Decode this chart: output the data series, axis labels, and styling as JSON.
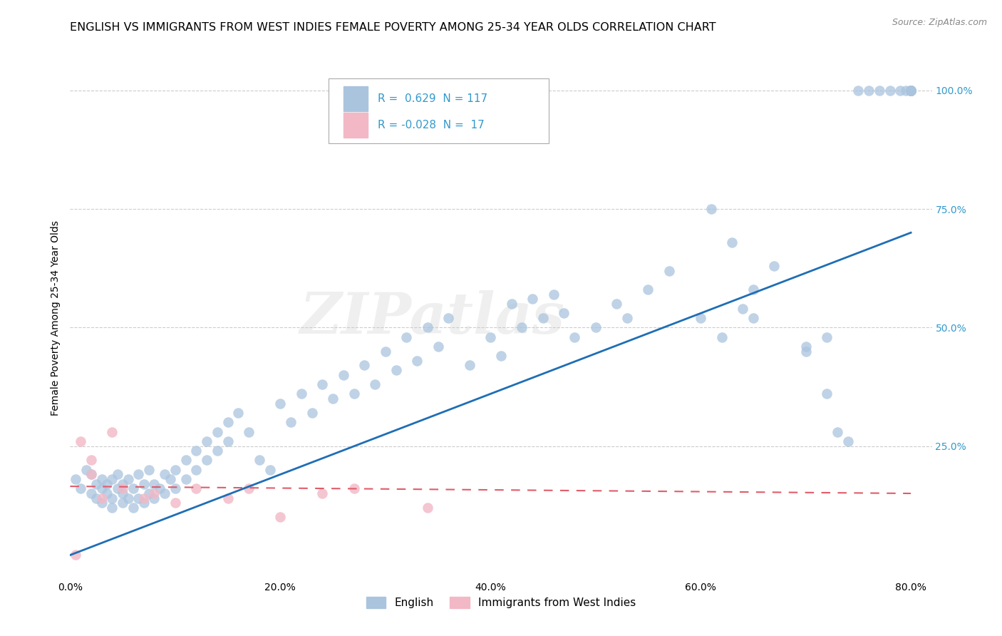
{
  "title": "ENGLISH VS IMMIGRANTS FROM WEST INDIES FEMALE POVERTY AMONG 25-34 YEAR OLDS CORRELATION CHART",
  "source": "Source: ZipAtlas.com",
  "ylabel": "Female Poverty Among 25-34 Year Olds",
  "xlim": [
    0.0,
    0.82
  ],
  "ylim": [
    -0.03,
    1.07
  ],
  "xtick_labels": [
    "0.0%",
    "20.0%",
    "40.0%",
    "60.0%",
    "80.0%"
  ],
  "xtick_vals": [
    0.0,
    0.2,
    0.4,
    0.6,
    0.8
  ],
  "ytick_labels": [
    "25.0%",
    "50.0%",
    "75.0%",
    "100.0%"
  ],
  "ytick_vals": [
    0.25,
    0.5,
    0.75,
    1.0
  ],
  "blue_color": "#aac4de",
  "pink_color": "#f2b8c6",
  "blue_line_color": "#1f6eb5",
  "pink_line_color": "#e05c6a",
  "R_english": 0.629,
  "N_english": 117,
  "R_immigrants": -0.028,
  "N_immigrants": 17,
  "legend_label_english": "English",
  "legend_label_immigrants": "Immigrants from West Indies",
  "watermark": "ZIPatlas",
  "title_fontsize": 11.5,
  "axis_label_fontsize": 10,
  "tick_fontsize": 10,
  "right_tick_color": "#3399cc",
  "english_x": [
    0.005,
    0.01,
    0.015,
    0.02,
    0.02,
    0.025,
    0.025,
    0.03,
    0.03,
    0.03,
    0.035,
    0.035,
    0.04,
    0.04,
    0.04,
    0.045,
    0.045,
    0.05,
    0.05,
    0.05,
    0.055,
    0.055,
    0.06,
    0.06,
    0.065,
    0.065,
    0.07,
    0.07,
    0.075,
    0.075,
    0.08,
    0.08,
    0.085,
    0.09,
    0.09,
    0.095,
    0.1,
    0.1,
    0.11,
    0.11,
    0.12,
    0.12,
    0.13,
    0.13,
    0.14,
    0.14,
    0.15,
    0.15,
    0.16,
    0.17,
    0.18,
    0.19,
    0.2,
    0.21,
    0.22,
    0.23,
    0.24,
    0.25,
    0.26,
    0.27,
    0.28,
    0.29,
    0.3,
    0.31,
    0.32,
    0.33,
    0.34,
    0.35,
    0.36,
    0.38,
    0.4,
    0.41,
    0.42,
    0.43,
    0.44,
    0.45,
    0.46,
    0.47,
    0.48,
    0.5,
    0.52,
    0.53,
    0.55,
    0.57,
    0.6,
    0.62,
    0.65,
    0.67,
    0.7,
    0.72,
    0.61,
    0.63,
    0.64,
    0.65,
    0.7,
    0.72,
    0.73,
    0.74,
    0.75,
    0.76,
    0.77,
    0.78,
    0.79,
    0.795,
    0.8,
    0.8,
    0.8,
    0.8,
    0.8,
    0.8,
    0.8,
    0.8,
    0.8,
    0.8,
    0.8,
    0.8,
    0.8
  ],
  "english_y": [
    0.18,
    0.16,
    0.2,
    0.15,
    0.19,
    0.14,
    0.17,
    0.13,
    0.16,
    0.18,
    0.15,
    0.17,
    0.14,
    0.18,
    0.12,
    0.16,
    0.19,
    0.13,
    0.17,
    0.15,
    0.14,
    0.18,
    0.12,
    0.16,
    0.14,
    0.19,
    0.13,
    0.17,
    0.15,
    0.2,
    0.14,
    0.17,
    0.16,
    0.15,
    0.19,
    0.18,
    0.16,
    0.2,
    0.22,
    0.18,
    0.24,
    0.2,
    0.26,
    0.22,
    0.28,
    0.24,
    0.3,
    0.26,
    0.32,
    0.28,
    0.22,
    0.2,
    0.34,
    0.3,
    0.36,
    0.32,
    0.38,
    0.35,
    0.4,
    0.36,
    0.42,
    0.38,
    0.45,
    0.41,
    0.48,
    0.43,
    0.5,
    0.46,
    0.52,
    0.42,
    0.48,
    0.44,
    0.55,
    0.5,
    0.56,
    0.52,
    0.57,
    0.53,
    0.48,
    0.5,
    0.55,
    0.52,
    0.58,
    0.62,
    0.52,
    0.48,
    0.58,
    0.63,
    0.46,
    0.48,
    0.75,
    0.68,
    0.54,
    0.52,
    0.45,
    0.36,
    0.28,
    0.26,
    1.0,
    1.0,
    1.0,
    1.0,
    1.0,
    1.0,
    1.0,
    1.0,
    1.0,
    1.0,
    1.0,
    1.0,
    1.0,
    1.0,
    1.0,
    1.0,
    1.0,
    1.0,
    1.0
  ],
  "immigrants_x": [
    0.005,
    0.01,
    0.02,
    0.02,
    0.03,
    0.04,
    0.05,
    0.07,
    0.08,
    0.1,
    0.12,
    0.15,
    0.17,
    0.2,
    0.24,
    0.27,
    0.34
  ],
  "immigrants_y": [
    0.02,
    0.26,
    0.22,
    0.19,
    0.14,
    0.28,
    0.16,
    0.14,
    0.15,
    0.13,
    0.16,
    0.14,
    0.16,
    0.1,
    0.15,
    0.16,
    0.12
  ],
  "eng_line_x": [
    0.0,
    0.8
  ],
  "eng_line_y": [
    0.02,
    0.7
  ],
  "imm_line_x": [
    0.0,
    0.8
  ],
  "imm_line_y": [
    0.165,
    0.15
  ]
}
